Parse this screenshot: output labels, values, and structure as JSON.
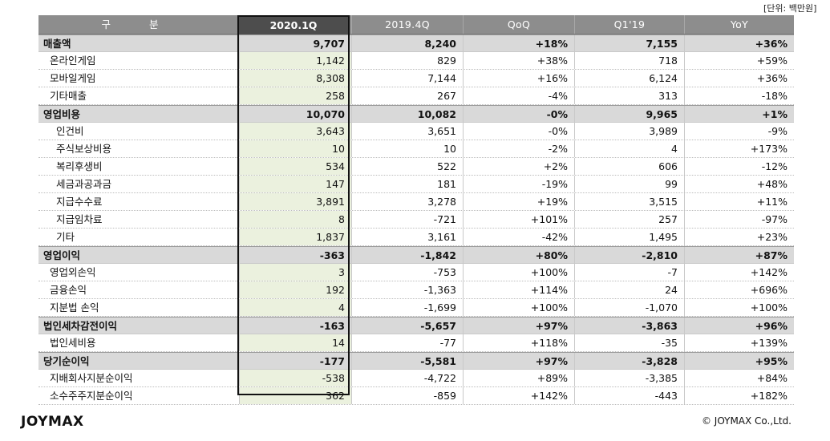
{
  "unit_note": "[단위: 백만원]",
  "header": [
    "구 분",
    "2020.1Q",
    "2019.4Q",
    "QoQ",
    "Q1'19",
    "YoY"
  ],
  "rows": [
    {
      "kind": "major",
      "label": "매출액",
      "values": [
        "9,707",
        "8,240",
        "+18%",
        "7,155",
        "+36%"
      ]
    },
    {
      "kind": "l1",
      "label": "온라인게임",
      "values": [
        "1,142",
        "829",
        "+38%",
        "718",
        "+59%"
      ]
    },
    {
      "kind": "l1",
      "label": "모바일게임",
      "values": [
        "8,308",
        "7,144",
        "+16%",
        "6,124",
        "+36%"
      ]
    },
    {
      "kind": "l1",
      "label": "기타매출",
      "values": [
        "258",
        "267",
        "-4%",
        "313",
        "-18%"
      ]
    },
    {
      "kind": "major",
      "label": "영업비용",
      "values": [
        "10,070",
        "10,082",
        "-0%",
        "9,965",
        "+1%"
      ]
    },
    {
      "kind": "l2",
      "label": "인건비",
      "values": [
        "3,643",
        "3,651",
        "-0%",
        "3,989",
        "-9%"
      ]
    },
    {
      "kind": "l2",
      "label": "주식보상비용",
      "values": [
        "10",
        "10",
        "-2%",
        "4",
        "+173%"
      ]
    },
    {
      "kind": "l2",
      "label": "복리후생비",
      "values": [
        "534",
        "522",
        "+2%",
        "606",
        "-12%"
      ]
    },
    {
      "kind": "l2",
      "label": "세금과공과금",
      "values": [
        "147",
        "181",
        "-19%",
        "99",
        "+48%"
      ]
    },
    {
      "kind": "l2",
      "label": "지급수수료",
      "values": [
        "3,891",
        "3,278",
        "+19%",
        "3,515",
        "+11%"
      ]
    },
    {
      "kind": "l2",
      "label": "지급임차료",
      "values": [
        "8",
        "-721",
        "+101%",
        "257",
        "-97%"
      ]
    },
    {
      "kind": "l2",
      "label": "기타",
      "values": [
        "1,837",
        "3,161",
        "-42%",
        "1,495",
        "+23%"
      ]
    },
    {
      "kind": "major",
      "label": "영업이익",
      "values": [
        "-363",
        "-1,842",
        "+80%",
        "-2,810",
        "+87%"
      ]
    },
    {
      "kind": "l1",
      "label": "영업외손익",
      "values": [
        "3",
        "-753",
        "+100%",
        "-7",
        "+142%"
      ]
    },
    {
      "kind": "l1",
      "label": "금융손익",
      "values": [
        "192",
        "-1,363",
        "+114%",
        "24",
        "+696%"
      ]
    },
    {
      "kind": "l1",
      "label": "지분법 손익",
      "values": [
        "4",
        "-1,699",
        "+100%",
        "-1,070",
        "+100%"
      ]
    },
    {
      "kind": "major",
      "label": "법인세차감전이익",
      "values": [
        "-163",
        "-5,657",
        "+97%",
        "-3,863",
        "+96%"
      ]
    },
    {
      "kind": "l1",
      "label": "법인세비용",
      "values": [
        "14",
        "-77",
        "+118%",
        "-35",
        "+139%"
      ]
    },
    {
      "kind": "major",
      "label": "당기순이익",
      "values": [
        "-177",
        "-5,581",
        "+97%",
        "-3,828",
        "+95%"
      ]
    },
    {
      "kind": "l1",
      "label": "지배회사지분순이익",
      "values": [
        "-538",
        "-4,722",
        "+89%",
        "-3,385",
        "+84%"
      ]
    },
    {
      "kind": "l1",
      "label": "소수주주지분순이익",
      "values": [
        "362",
        "-859",
        "+142%",
        "-443",
        "+182%"
      ]
    }
  ],
  "footer": {
    "logo": "JOYMAX",
    "copyright": "© JOYMAX Co.,Ltd."
  }
}
